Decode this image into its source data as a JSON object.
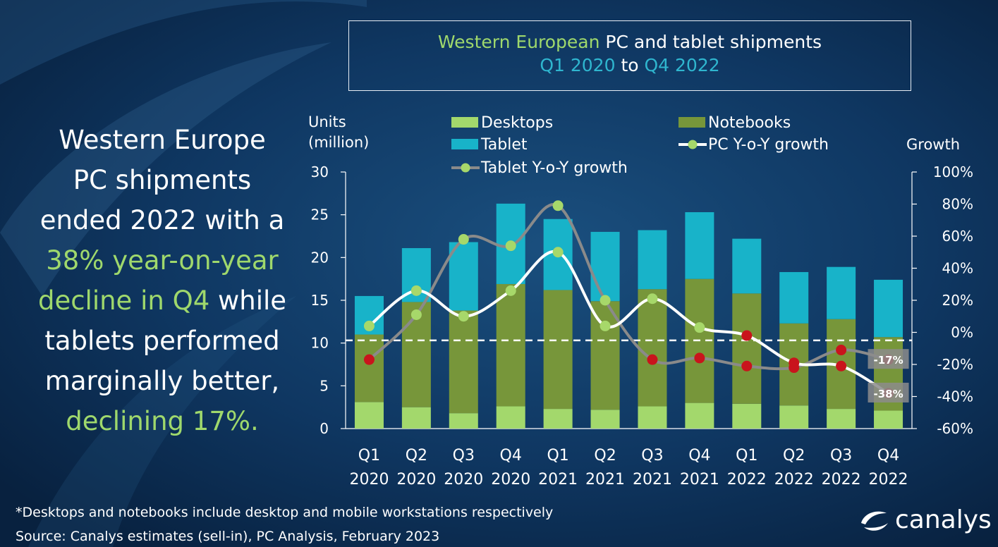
{
  "title": {
    "part1": "Western European",
    "part2": " PC and tablet shipments",
    "part3": "Q1 2020",
    "part4": " to ",
    "part5": "Q4 2022"
  },
  "headline": {
    "l1": "Western Europe",
    "l2": "PC shipments",
    "l3": "ended 2022 with a",
    "l4": "38% year-on-year",
    "l5a": "decline in Q4",
    "l5b": " while",
    "l6": "tablets performed",
    "l7": "marginally better,",
    "l8": "declining 17%."
  },
  "footnote": "*Desktops and notebooks  include desktop and mobile workstations respectively",
  "source": "Source:  Canalys estimates (sell-in), PC Analysis, February 2023",
  "logo_text": "canalys",
  "colors": {
    "background": "#0b2a4f",
    "desktops": "#a3d86c",
    "notebooks": "#77963a",
    "tablet": "#18b3c9",
    "pc_growth": "#ffffff",
    "tablet_growth": "#8a8a8a",
    "marker_green": "#a7d86a",
    "marker_red": "#c9141c",
    "green_text": "#9fd86c",
    "cyan_text": "#2fb6cf"
  },
  "chart_data": {
    "type": "bar",
    "stacked": true,
    "categories": [
      [
        "Q1",
        "2020"
      ],
      [
        "Q2",
        "2020"
      ],
      [
        "Q3",
        "2020"
      ],
      [
        "Q4",
        "2020"
      ],
      [
        "Q1",
        "2021"
      ],
      [
        "Q2",
        "2021"
      ],
      [
        "Q3",
        "2021"
      ],
      [
        "Q4",
        "2021"
      ],
      [
        "Q1",
        "2022"
      ],
      [
        "Q2",
        "2022"
      ],
      [
        "Q3",
        "2022"
      ],
      [
        "Q4",
        "2022"
      ]
    ],
    "ylabel_left": [
      "Units",
      "(million)"
    ],
    "ylabel_right": "Growth",
    "ylim_left": [
      0,
      30
    ],
    "yticks_left": [
      "0",
      "5",
      "10",
      "15",
      "20",
      "25",
      "30"
    ],
    "ylim_right": [
      -60,
      100
    ],
    "yticks_right": [
      "-60%",
      "-40%",
      "-20%",
      "0%",
      "20%",
      "40%",
      "60%",
      "80%",
      "100%"
    ],
    "series": [
      {
        "name": "Desktops",
        "values": [
          3.1,
          2.5,
          1.8,
          2.6,
          2.3,
          2.2,
          2.6,
          3.0,
          2.9,
          2.7,
          2.3,
          2.1
        ]
      },
      {
        "name": "Notebooks",
        "values": [
          7.9,
          12.3,
          12.0,
          14.3,
          13.9,
          12.7,
          13.7,
          14.5,
          12.9,
          9.6,
          10.5,
          8.6
        ]
      },
      {
        "name": "Tablet",
        "values": [
          4.5,
          6.3,
          8.0,
          9.4,
          8.3,
          8.1,
          6.9,
          7.8,
          6.4,
          6.0,
          6.1,
          6.7
        ]
      }
    ],
    "lines": [
      {
        "name": "PC Y-o-Y growth",
        "values": [
          4,
          26,
          10,
          26,
          50,
          4,
          21,
          3,
          -2,
          -19,
          -21,
          -38
        ]
      },
      {
        "name": "Tablet Y-o-Y growth",
        "values": [
          -17,
          11,
          58,
          54,
          79,
          20,
          -17,
          -16,
          -21,
          -22,
          -11,
          -17
        ]
      }
    ],
    "line_marker_colors": {
      "PC Y-o-Y growth": [
        "green",
        "green",
        "green",
        "green",
        "green",
        "green",
        "green",
        "green",
        "red",
        "red",
        "red",
        "red"
      ],
      "Tablet Y-o-Y growth": [
        "red",
        "green",
        "green",
        "green",
        "green",
        "green",
        "red",
        "red",
        "red",
        "red",
        "red",
        "red"
      ]
    },
    "data_labels": [
      {
        "series": "Tablet Y-o-Y growth",
        "index": 11,
        "text": "-17%"
      },
      {
        "series": "PC Y-o-Y growth",
        "index": 11,
        "text": "-38%"
      }
    ],
    "reference_line": {
      "axis": "right",
      "value": -5,
      "style": "dashed"
    },
    "legend": [
      "Desktops",
      "Notebooks",
      "Tablet",
      "PC Y-o-Y growth",
      "Tablet Y-o-Y growth"
    ]
  }
}
